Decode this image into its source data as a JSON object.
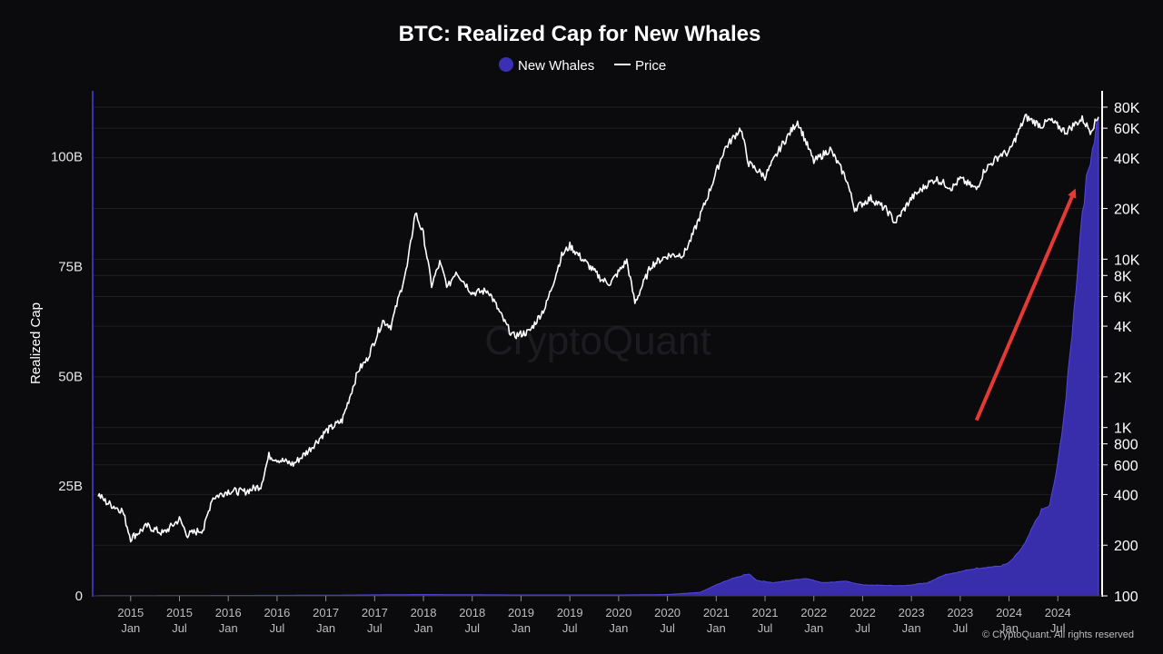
{
  "chart_data": {
    "type": "area",
    "title": "BTC: Realized Cap for New Whales",
    "ylabel": "Realized Cap",
    "legend": {
      "placement": "top-center",
      "items": [
        {
          "label": "New Whales",
          "marker": "circle",
          "color": "#3b2fb3"
        },
        {
          "label": "Price",
          "marker": "line",
          "color": "#ffffff"
        }
      ]
    },
    "x_range": [
      "2014-09",
      "2024-12"
    ],
    "x_ticks": [
      {
        "date": "2015-01",
        "year": "2015",
        "month": "Jan"
      },
      {
        "date": "2015-07",
        "year": "2015",
        "month": "Jul"
      },
      {
        "date": "2016-01",
        "year": "2016",
        "month": "Jan"
      },
      {
        "date": "2016-07",
        "year": "2016",
        "month": "Jul"
      },
      {
        "date": "2017-01",
        "year": "2017",
        "month": "Jan"
      },
      {
        "date": "2017-07",
        "year": "2017",
        "month": "Jul"
      },
      {
        "date": "2018-01",
        "year": "2018",
        "month": "Jan"
      },
      {
        "date": "2018-07",
        "year": "2018",
        "month": "Jul"
      },
      {
        "date": "2019-01",
        "year": "2019",
        "month": "Jan"
      },
      {
        "date": "2019-07",
        "year": "2019",
        "month": "Jul"
      },
      {
        "date": "2020-01",
        "year": "2020",
        "month": "Jan"
      },
      {
        "date": "2020-07",
        "year": "2020",
        "month": "Jul"
      },
      {
        "date": "2021-01",
        "year": "2021",
        "month": "Jan"
      },
      {
        "date": "2021-07",
        "year": "2021",
        "month": "Jul"
      },
      {
        "date": "2022-01",
        "year": "2022",
        "month": "Jan"
      },
      {
        "date": "2022-07",
        "year": "2022",
        "month": "Jul"
      },
      {
        "date": "2023-01",
        "year": "2023",
        "month": "Jan"
      },
      {
        "date": "2023-07",
        "year": "2023",
        "month": "Jul"
      },
      {
        "date": "2024-01",
        "year": "2024",
        "month": "Jan"
      },
      {
        "date": "2024-07",
        "year": "2024",
        "month": "Jul"
      }
    ],
    "y_left": {
      "min": 0,
      "max": 115,
      "unit": "B",
      "ticks": [
        {
          "value": 0,
          "label": "0"
        },
        {
          "value": 25,
          "label": "25B"
        },
        {
          "value": 50,
          "label": "50B"
        },
        {
          "value": 75,
          "label": "75B"
        },
        {
          "value": 100,
          "label": "100B"
        }
      ]
    },
    "y_right": {
      "scale": "log",
      "min": 100,
      "max": 100000,
      "ticks": [
        {
          "value": 100,
          "label": "100"
        },
        {
          "value": 200,
          "label": "200"
        },
        {
          "value": 400,
          "label": "400"
        },
        {
          "value": 600,
          "label": "600"
        },
        {
          "value": 800,
          "label": "800"
        },
        {
          "value": 1000,
          "label": "1K"
        },
        {
          "value": 2000,
          "label": "2K"
        },
        {
          "value": 4000,
          "label": "4K"
        },
        {
          "value": 6000,
          "label": "6K"
        },
        {
          "value": 8000,
          "label": "8K"
        },
        {
          "value": 10000,
          "label": "10K"
        },
        {
          "value": 20000,
          "label": "20K"
        },
        {
          "value": 40000,
          "label": "40K"
        },
        {
          "value": 60000,
          "label": "60K"
        },
        {
          "value": 80000,
          "label": "80K"
        }
      ]
    },
    "grid": true,
    "series": [
      {
        "name": "New Whales",
        "type": "area",
        "axis": "left",
        "color": "#3b2fb3",
        "points": [
          [
            "2014-09",
            0.05
          ],
          [
            "2016-01",
            0.1
          ],
          [
            "2017-01",
            0.15
          ],
          [
            "2018-01",
            0.3
          ],
          [
            "2019-01",
            0.2
          ],
          [
            "2020-01",
            0.2
          ],
          [
            "2020-07",
            0.3
          ],
          [
            "2020-11",
            0.8
          ],
          [
            "2021-01",
            2.5
          ],
          [
            "2021-03",
            4.0
          ],
          [
            "2021-05",
            5.0
          ],
          [
            "2021-06",
            3.5
          ],
          [
            "2021-08",
            3.0
          ],
          [
            "2021-10",
            3.5
          ],
          [
            "2021-12",
            4.0
          ],
          [
            "2022-02",
            3.0
          ],
          [
            "2022-05",
            3.3
          ],
          [
            "2022-07",
            2.5
          ],
          [
            "2022-12",
            2.3
          ],
          [
            "2023-03",
            3.0
          ],
          [
            "2023-05",
            4.8
          ],
          [
            "2023-07",
            5.5
          ],
          [
            "2023-09",
            6.3
          ],
          [
            "2023-12",
            6.8
          ],
          [
            "2024-01",
            7.5
          ],
          [
            "2024-02",
            9.5
          ],
          [
            "2024-03",
            12.0
          ],
          [
            "2024-04",
            16.0
          ],
          [
            "2024-05",
            19.5
          ],
          [
            "2024-06",
            20.5
          ],
          [
            "2024-07",
            30.0
          ],
          [
            "2024-08",
            45.0
          ],
          [
            "2024-09",
            65.0
          ],
          [
            "2024-10",
            88.0
          ],
          [
            "2024-11",
            100.0
          ],
          [
            "2024-12",
            109.0
          ]
        ]
      },
      {
        "name": "Price",
        "type": "line",
        "axis": "right",
        "color": "#ffffff",
        "points": [
          [
            "2014-09",
            400
          ],
          [
            "2014-10",
            360
          ],
          [
            "2014-12",
            320
          ],
          [
            "2015-01",
            220
          ],
          [
            "2015-03",
            260
          ],
          [
            "2015-05",
            235
          ],
          [
            "2015-07",
            285
          ],
          [
            "2015-08",
            230
          ],
          [
            "2015-10",
            250
          ],
          [
            "2015-11",
            380
          ],
          [
            "2016-01",
            420
          ],
          [
            "2016-03",
            415
          ],
          [
            "2016-05",
            450
          ],
          [
            "2016-06",
            680
          ],
          [
            "2016-07",
            650
          ],
          [
            "2016-09",
            605
          ],
          [
            "2016-11",
            740
          ],
          [
            "2017-01",
            950
          ],
          [
            "2017-03",
            1100
          ],
          [
            "2017-05",
            2200
          ],
          [
            "2017-06",
            2500
          ],
          [
            "2017-08",
            4300
          ],
          [
            "2017-09",
            4000
          ],
          [
            "2017-10",
            6000
          ],
          [
            "2017-11",
            9000
          ],
          [
            "2017-12",
            19000
          ],
          [
            "2018-01",
            14000
          ],
          [
            "2018-02",
            7000
          ],
          [
            "2018-03",
            9500
          ],
          [
            "2018-04",
            6800
          ],
          [
            "2018-05",
            8500
          ],
          [
            "2018-07",
            6300
          ],
          [
            "2018-09",
            6500
          ],
          [
            "2018-11",
            4200
          ],
          [
            "2018-12",
            3500
          ],
          [
            "2019-02",
            3700
          ],
          [
            "2019-04",
            5200
          ],
          [
            "2019-06",
            10500
          ],
          [
            "2019-07",
            12000
          ],
          [
            "2019-09",
            9500
          ],
          [
            "2019-11",
            7500
          ],
          [
            "2019-12",
            7200
          ],
          [
            "2020-02",
            9800
          ],
          [
            "2020-03",
            5500
          ],
          [
            "2020-05",
            9200
          ],
          [
            "2020-07",
            10500
          ],
          [
            "2020-09",
            10700
          ],
          [
            "2020-10",
            13500
          ],
          [
            "2020-12",
            24000
          ],
          [
            "2021-01",
            33000
          ],
          [
            "2021-02",
            45000
          ],
          [
            "2021-04",
            60000
          ],
          [
            "2021-05",
            37000
          ],
          [
            "2021-07",
            31000
          ],
          [
            "2021-09",
            47000
          ],
          [
            "2021-11",
            66000
          ],
          [
            "2022-01",
            38000
          ],
          [
            "2022-03",
            45000
          ],
          [
            "2022-05",
            30000
          ],
          [
            "2022-06",
            20000
          ],
          [
            "2022-08",
            23000
          ],
          [
            "2022-10",
            19500
          ],
          [
            "2022-11",
            16500
          ],
          [
            "2023-01",
            23000
          ],
          [
            "2023-03",
            28000
          ],
          [
            "2023-04",
            30000
          ],
          [
            "2023-06",
            26500
          ],
          [
            "2023-07",
            30000
          ],
          [
            "2023-09",
            26000
          ],
          [
            "2023-10",
            34000
          ],
          [
            "2023-12",
            42000
          ],
          [
            "2024-01",
            43000
          ],
          [
            "2024-03",
            70000
          ],
          [
            "2024-05",
            62000
          ],
          [
            "2024-06",
            67000
          ],
          [
            "2024-08",
            57000
          ],
          [
            "2024-09",
            63000
          ],
          [
            "2024-10",
            68000
          ],
          [
            "2024-11",
            58000
          ],
          [
            "2024-12",
            70000
          ]
        ]
      }
    ],
    "annotations": [
      {
        "type": "arrow",
        "color": "#e53935",
        "from": [
          "2023-09",
          40
        ],
        "to": [
          "2024-09",
          92
        ]
      }
    ],
    "watermark": "CryptoQuant",
    "copyright": "© CryptoQuant. All rights reserved"
  }
}
